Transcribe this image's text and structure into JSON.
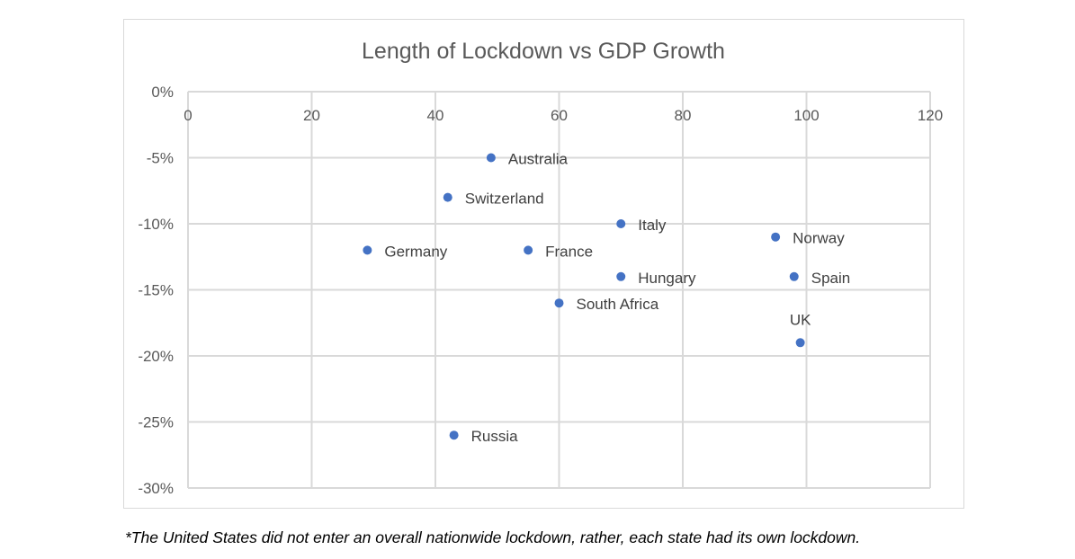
{
  "chart_data": {
    "type": "scatter",
    "title": "Length of Lockdown vs GDP Growth",
    "xlabel": "",
    "ylabel": "",
    "xlim": [
      0,
      120
    ],
    "ylim": [
      -30,
      0
    ],
    "x_ticks": [
      0,
      20,
      40,
      60,
      80,
      100,
      120
    ],
    "x_tick_labels": [
      "0",
      "20",
      "40",
      "60",
      "80",
      "100",
      "120"
    ],
    "y_ticks": [
      0,
      -5,
      -10,
      -15,
      -20,
      -25,
      -30
    ],
    "y_tick_labels": [
      "0%",
      "-5%",
      "-10%",
      "-15%",
      "-20%",
      "-25%",
      "-30%"
    ],
    "x_axis_position": "top (crosses at y=0)",
    "grid": true,
    "legend": "none",
    "marker_color": "#4472c4",
    "points": [
      {
        "label": "Australia",
        "x": 49,
        "y": -5,
        "label_pos": "right"
      },
      {
        "label": "Switzerland",
        "x": 42,
        "y": -8,
        "label_pos": "right"
      },
      {
        "label": "Italy",
        "x": 70,
        "y": -10,
        "label_pos": "right"
      },
      {
        "label": "Germany",
        "x": 29,
        "y": -12,
        "label_pos": "right"
      },
      {
        "label": "France",
        "x": 55,
        "y": -12,
        "label_pos": "right"
      },
      {
        "label": "Norway",
        "x": 95,
        "y": -11,
        "label_pos": "right"
      },
      {
        "label": "Hungary",
        "x": 70,
        "y": -14,
        "label_pos": "right"
      },
      {
        "label": "Spain",
        "x": 98,
        "y": -14,
        "label_pos": "right"
      },
      {
        "label": "South Africa",
        "x": 60,
        "y": -16,
        "label_pos": "right"
      },
      {
        "label": "UK",
        "x": 99,
        "y": -19,
        "label_pos": "above"
      },
      {
        "label": "Russia",
        "x": 43,
        "y": -26,
        "label_pos": "right"
      }
    ]
  },
  "footnote": "*The United States did not enter an overall nationwide lockdown, rather, each state had its own lockdown."
}
